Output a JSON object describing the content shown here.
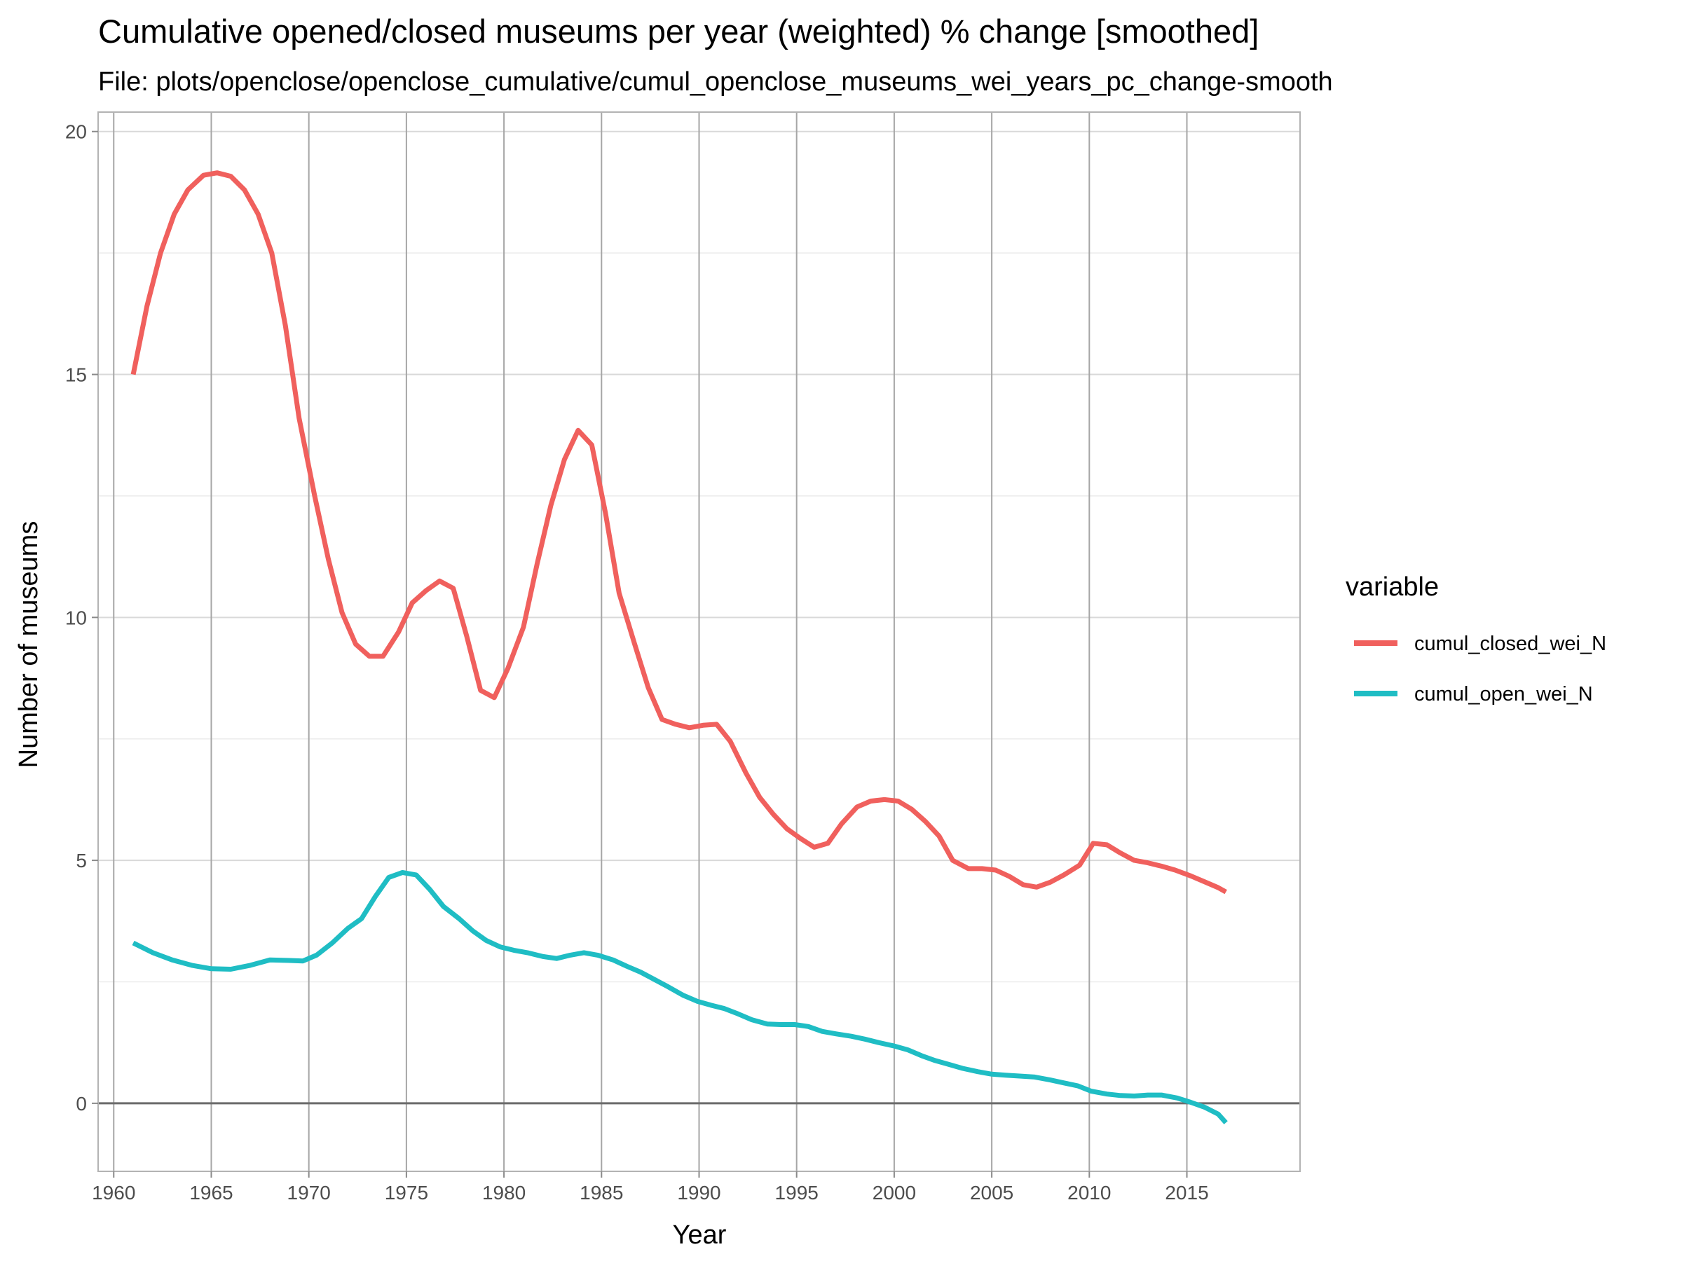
{
  "chart_data": {
    "type": "line",
    "title": "Cumulative opened/closed museums per year (weighted) % change [smoothed]",
    "subtitle": "File: plots/openclose/openclose_cumulative/cumul_openclose_museums_wei_years_pc_change-smooth",
    "xlabel": "Year",
    "ylabel": "Number of museums",
    "xlim": [
      1959.2,
      2020.8
    ],
    "ylim": [
      -1.4,
      20.4
    ],
    "x_ticks": [
      "1960",
      "1965",
      "1970",
      "1975",
      "1980",
      "1985",
      "1990",
      "1995",
      "2000",
      "2005",
      "2010",
      "2015"
    ],
    "y_ticks": [
      "0",
      "5",
      "10",
      "15",
      "20"
    ],
    "grid": true,
    "zero_line": true,
    "legend": {
      "title": "variable",
      "position": "right"
    },
    "series": [
      {
        "name": "cumul_closed_wei_N",
        "color": "#F0605D",
        "points": [
          [
            1961,
            15.0
          ],
          [
            1961.7,
            16.4
          ],
          [
            1962.4,
            17.5
          ],
          [
            1963.1,
            18.3
          ],
          [
            1963.8,
            18.8
          ],
          [
            1964.6,
            19.1
          ],
          [
            1965.3,
            19.15
          ],
          [
            1966,
            19.08
          ],
          [
            1966.7,
            18.8
          ],
          [
            1967.4,
            18.3
          ],
          [
            1968.1,
            17.5
          ],
          [
            1968.8,
            16.0
          ],
          [
            1969.5,
            14.1
          ],
          [
            1970.3,
            12.5
          ],
          [
            1971,
            11.2
          ],
          [
            1971.7,
            10.1
          ],
          [
            1972.4,
            9.45
          ],
          [
            1973.1,
            9.2
          ],
          [
            1973.8,
            9.2
          ],
          [
            1974.6,
            9.7
          ],
          [
            1975.3,
            10.3
          ],
          [
            1976,
            10.55
          ],
          [
            1976.7,
            10.75
          ],
          [
            1977.4,
            10.6
          ],
          [
            1978.1,
            9.6
          ],
          [
            1978.8,
            8.5
          ],
          [
            1979.5,
            8.35
          ],
          [
            1980.2,
            8.95
          ],
          [
            1981,
            9.8
          ],
          [
            1981.7,
            11.1
          ],
          [
            1982.4,
            12.3
          ],
          [
            1983.1,
            13.25
          ],
          [
            1983.8,
            13.85
          ],
          [
            1984.5,
            13.55
          ],
          [
            1985.2,
            12.15
          ],
          [
            1985.9,
            10.5
          ],
          [
            1986.7,
            9.45
          ],
          [
            1987.4,
            8.55
          ],
          [
            1988.1,
            7.9
          ],
          [
            1988.8,
            7.8
          ],
          [
            1989.5,
            7.73
          ],
          [
            1990.2,
            7.78
          ],
          [
            1990.9,
            7.8
          ],
          [
            1991.6,
            7.45
          ],
          [
            1992.4,
            6.8
          ],
          [
            1993.1,
            6.3
          ],
          [
            1993.8,
            5.95
          ],
          [
            1994.5,
            5.65
          ],
          [
            1995.2,
            5.45
          ],
          [
            1995.9,
            5.27
          ],
          [
            1996.6,
            5.35
          ],
          [
            1997.3,
            5.75
          ],
          [
            1998.1,
            6.1
          ],
          [
            1998.8,
            6.22
          ],
          [
            1999.5,
            6.25
          ],
          [
            2000.2,
            6.22
          ],
          [
            2000.9,
            6.05
          ],
          [
            2001.6,
            5.8
          ],
          [
            2002.3,
            5.5
          ],
          [
            2003,
            5.0
          ],
          [
            2003.8,
            4.83
          ],
          [
            2004.5,
            4.83
          ],
          [
            2005.2,
            4.8
          ],
          [
            2005.9,
            4.67
          ],
          [
            2006.6,
            4.5
          ],
          [
            2007.3,
            4.45
          ],
          [
            2008,
            4.55
          ],
          [
            2008.7,
            4.7
          ],
          [
            2009.5,
            4.9
          ],
          [
            2010.2,
            5.35
          ],
          [
            2010.9,
            5.32
          ],
          [
            2011.6,
            5.15
          ],
          [
            2012.3,
            5.0
          ],
          [
            2013,
            4.95
          ],
          [
            2013.7,
            4.88
          ],
          [
            2014.4,
            4.8
          ],
          [
            2015.2,
            4.68
          ],
          [
            2015.9,
            4.56
          ],
          [
            2016.6,
            4.44
          ],
          [
            2017,
            4.35
          ]
        ]
      },
      {
        "name": "cumul_open_wei_N",
        "color": "#1FBDC4",
        "points": [
          [
            1961,
            3.3
          ],
          [
            1962,
            3.1
          ],
          [
            1963,
            2.95
          ],
          [
            1964,
            2.84
          ],
          [
            1965,
            2.77
          ],
          [
            1966,
            2.76
          ],
          [
            1967,
            2.84
          ],
          [
            1968,
            2.95
          ],
          [
            1969,
            2.94
          ],
          [
            1969.7,
            2.93
          ],
          [
            1970.4,
            3.05
          ],
          [
            1971.2,
            3.3
          ],
          [
            1972,
            3.6
          ],
          [
            1972.7,
            3.8
          ],
          [
            1973.4,
            4.25
          ],
          [
            1974.1,
            4.65
          ],
          [
            1974.8,
            4.75
          ],
          [
            1975.5,
            4.7
          ],
          [
            1976.2,
            4.4
          ],
          [
            1976.9,
            4.05
          ],
          [
            1977.7,
            3.8
          ],
          [
            1978.4,
            3.55
          ],
          [
            1979.1,
            3.35
          ],
          [
            1979.8,
            3.22
          ],
          [
            1980.5,
            3.15
          ],
          [
            1981.2,
            3.1
          ],
          [
            1982,
            3.02
          ],
          [
            1982.7,
            2.98
          ],
          [
            1983.4,
            3.05
          ],
          [
            1984.1,
            3.1
          ],
          [
            1984.8,
            3.05
          ],
          [
            1985.6,
            2.95
          ],
          [
            1986.3,
            2.82
          ],
          [
            1987,
            2.7
          ],
          [
            1987.7,
            2.55
          ],
          [
            1988.4,
            2.4
          ],
          [
            1989.2,
            2.22
          ],
          [
            1989.9,
            2.1
          ],
          [
            1990.6,
            2.02
          ],
          [
            1991.3,
            1.95
          ],
          [
            1992,
            1.84
          ],
          [
            1992.7,
            1.72
          ],
          [
            1993.5,
            1.63
          ],
          [
            1994.2,
            1.62
          ],
          [
            1994.9,
            1.62
          ],
          [
            1995.6,
            1.58
          ],
          [
            1996.3,
            1.48
          ],
          [
            1997,
            1.43
          ],
          [
            1997.8,
            1.38
          ],
          [
            1998.5,
            1.32
          ],
          [
            1999.2,
            1.25
          ],
          [
            2000,
            1.18
          ],
          [
            2000.7,
            1.1
          ],
          [
            2001.4,
            0.98
          ],
          [
            2002.1,
            0.88
          ],
          [
            2002.8,
            0.8
          ],
          [
            2003.5,
            0.72
          ],
          [
            2004.3,
            0.65
          ],
          [
            2005,
            0.6
          ],
          [
            2005.7,
            0.58
          ],
          [
            2006.5,
            0.56
          ],
          [
            2007.2,
            0.54
          ],
          [
            2008,
            0.48
          ],
          [
            2008.7,
            0.42
          ],
          [
            2009.4,
            0.36
          ],
          [
            2010.1,
            0.25
          ],
          [
            2010.9,
            0.19
          ],
          [
            2011.6,
            0.16
          ],
          [
            2012.3,
            0.15
          ],
          [
            2013,
            0.17
          ],
          [
            2013.7,
            0.17
          ],
          [
            2014.5,
            0.11
          ],
          [
            2015.2,
            0.02
          ],
          [
            2015.9,
            -0.08
          ],
          [
            2016.6,
            -0.22
          ],
          [
            2017,
            -0.4
          ]
        ]
      }
    ]
  }
}
